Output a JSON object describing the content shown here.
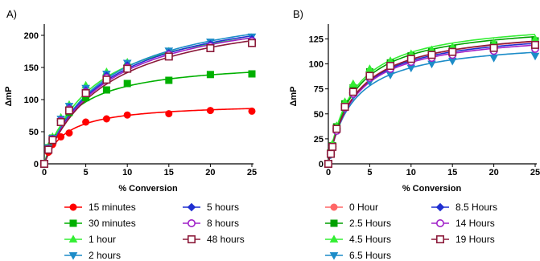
{
  "chart_data": [
    {
      "panel": "A)",
      "type": "line",
      "xlabel": "% Conversion",
      "ylabel": "ΔmP",
      "xlim": [
        0,
        25
      ],
      "ylim": [
        0,
        210
      ],
      "xticks": [
        0,
        5,
        10,
        15,
        20,
        25
      ],
      "yticks": [
        0,
        50,
        100,
        150,
        200
      ],
      "grid": false,
      "legend_position": "bottom",
      "series": [
        {
          "name": "15 minutes",
          "color": "#ff0000",
          "marker": "circle",
          "x": [
            0,
            0.5,
            1,
            2,
            3,
            5,
            7.5,
            10,
            15,
            20,
            25
          ],
          "y": [
            0,
            18,
            30,
            42,
            48,
            65,
            70,
            76,
            78,
            83,
            82
          ],
          "fit_ymax": 95,
          "fit_k": 2.6
        },
        {
          "name": "30 minutes",
          "color": "#00b000",
          "marker": "square",
          "x": [
            0,
            0.5,
            1,
            2,
            3,
            5,
            7.5,
            10,
            15,
            20,
            25
          ],
          "y": [
            0,
            25,
            40,
            65,
            80,
            103,
            115,
            125,
            130,
            139,
            140
          ],
          "fit_ymax": 162,
          "fit_k": 3.4
        },
        {
          "name": "1 hour",
          "color": "#33ee33",
          "marker": "triangle-up",
          "x": [
            0,
            0.5,
            1,
            2,
            3,
            5,
            7.5,
            10,
            15,
            20,
            25
          ],
          "y": [
            0,
            27,
            42,
            72,
            92,
            122,
            143,
            158,
            175,
            186,
            195
          ],
          "fit_ymax": 243,
          "fit_k": 6.0
        },
        {
          "name": "2 hours",
          "color": "#1c8cc8",
          "marker": "triangle-down",
          "x": [
            0,
            0.5,
            1,
            2,
            3,
            5,
            7.5,
            10,
            15,
            20,
            25
          ],
          "y": [
            0,
            25,
            40,
            70,
            90,
            118,
            140,
            157,
            176,
            190,
            198
          ],
          "fit_ymax": 260,
          "fit_k": 7.2
        },
        {
          "name": "5 hours",
          "color": "#1f2fd1",
          "marker": "diamond",
          "x": [
            0,
            0.5,
            1,
            2,
            3,
            5,
            7.5,
            10,
            15,
            20,
            25
          ],
          "y": [
            0,
            24,
            39,
            68,
            87,
            114,
            137,
            153,
            172,
            186,
            194
          ],
          "fit_ymax": 258,
          "fit_k": 7.4
        },
        {
          "name": "8 hours",
          "color": "#a020c8",
          "marker": "circle-open",
          "x": [
            0,
            0.5,
            1,
            2,
            3,
            5,
            7.5,
            10,
            15,
            20,
            25
          ],
          "y": [
            0,
            23,
            38,
            67,
            85,
            112,
            134,
            150,
            170,
            183,
            191
          ],
          "fit_ymax": 255,
          "fit_k": 7.5
        },
        {
          "name": "48 hours",
          "color": "#8b1a3a",
          "marker": "square-open",
          "x": [
            0,
            0.5,
            1,
            2,
            3,
            5,
            7.5,
            10,
            15,
            20,
            25
          ],
          "y": [
            0,
            22,
            37,
            65,
            83,
            110,
            131,
            148,
            167,
            180,
            188
          ],
          "fit_ymax": 250,
          "fit_k": 7.6
        }
      ]
    },
    {
      "panel": "B)",
      "type": "line",
      "xlabel": "% Conversion",
      "ylabel": "ΔmP",
      "xlim": [
        0,
        25
      ],
      "ylim": [
        0,
        135
      ],
      "xticks": [
        0,
        5,
        10,
        15,
        20,
        25
      ],
      "yticks": [
        0,
        25,
        50,
        75,
        100,
        125
      ],
      "grid": false,
      "legend_position": "bottom",
      "series": [
        {
          "name": "0 Hour",
          "color": "#ff6666",
          "marker": "circle",
          "x": [
            0,
            0.3,
            0.5,
            1,
            2,
            3,
            5,
            7.5,
            10,
            12.5,
            15,
            20,
            25
          ],
          "y": [
            0,
            10,
            17,
            35,
            57,
            72,
            88,
            98,
            104,
            108,
            112,
            116,
            118
          ],
          "fit_ymax": 138,
          "fit_k": 3.2
        },
        {
          "name": "2.5 Hours",
          "color": "#00a000",
          "marker": "square",
          "x": [
            0,
            0.3,
            0.5,
            1,
            2,
            3,
            5,
            7.5,
            10,
            12.5,
            15,
            20,
            25
          ],
          "y": [
            0,
            11,
            18,
            37,
            60,
            76,
            92,
            101,
            108,
            112,
            115,
            119,
            123
          ],
          "fit_ymax": 143,
          "fit_k": 3.1
        },
        {
          "name": "4.5 Hours",
          "color": "#33ee33",
          "marker": "triangle-up",
          "x": [
            0,
            0.3,
            0.5,
            1,
            2,
            3,
            5,
            7.5,
            10,
            12.5,
            15,
            20,
            25
          ],
          "y": [
            0,
            12,
            20,
            38,
            62,
            80,
            95,
            103,
            110,
            114,
            117,
            121,
            125
          ],
          "fit_ymax": 145,
          "fit_k": 3.0
        },
        {
          "name": "6.5 Hours",
          "color": "#1c8cc8",
          "marker": "triangle-down",
          "x": [
            0,
            0.3,
            0.5,
            1,
            2,
            3,
            5,
            7.5,
            10,
            12.5,
            15,
            20,
            25
          ],
          "y": [
            0,
            9,
            16,
            33,
            55,
            68,
            82,
            89,
            96,
            100,
            103,
            106,
            108
          ],
          "fit_ymax": 125,
          "fit_k": 3.0
        },
        {
          "name": "8.5 Hours",
          "color": "#1f2fd1",
          "marker": "diamond",
          "x": [
            0,
            0.3,
            0.5,
            1,
            2,
            3,
            5,
            7.5,
            10,
            12.5,
            15,
            20,
            25
          ],
          "y": [
            0,
            10,
            16,
            34,
            57,
            71,
            87,
            97,
            103,
            107,
            110,
            114,
            117
          ],
          "fit_ymax": 136,
          "fit_k": 3.2
        },
        {
          "name": "14 Hours",
          "color": "#a020c8",
          "marker": "circle-open",
          "x": [
            0,
            0.3,
            0.5,
            1,
            2,
            3,
            5,
            7.5,
            10,
            12.5,
            15,
            20,
            25
          ],
          "y": [
            0,
            10,
            16,
            33,
            56,
            70,
            86,
            95,
            102,
            106,
            109,
            113,
            115
          ],
          "fit_ymax": 134,
          "fit_k": 3.2
        },
        {
          "name": "19 Hours",
          "color": "#8b1a3a",
          "marker": "square-open",
          "x": [
            0,
            0.3,
            0.5,
            1,
            2,
            3,
            5,
            7.5,
            10,
            12.5,
            15,
            20,
            25
          ],
          "y": [
            0,
            10,
            17,
            35,
            57,
            72,
            88,
            98,
            105,
            109,
            112,
            116,
            119
          ],
          "fit_ymax": 139,
          "fit_k": 3.3
        }
      ]
    }
  ]
}
